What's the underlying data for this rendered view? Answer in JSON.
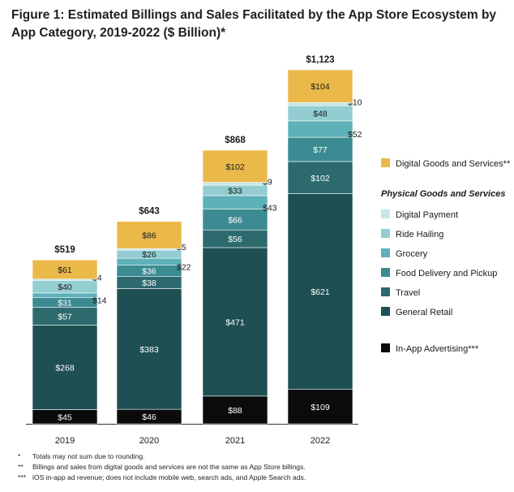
{
  "title": "Figure 1: Estimated Billings and Sales Facilitated by the App Store Ecosystem by App Category, 2019-2022 ($ Billion)*",
  "chart_data": {
    "type": "bar",
    "stacked": true,
    "title": "Figure 1: Estimated Billings and Sales Facilitated by the App Store Ecosystem by App Category, 2019-2022 ($ Billion)*",
    "categories": [
      "2019",
      "2020",
      "2021",
      "2022"
    ],
    "totals": [
      519,
      643,
      868,
      1123
    ],
    "total_labels": [
      "$519",
      "$643",
      "$868",
      "$1,123"
    ],
    "ylim": [
      0,
      1123
    ],
    "grid": false,
    "legend_position": "right",
    "legend_group_heading": "Physical Goods and Services",
    "series": [
      {
        "name": "In-App Advertising***",
        "color": "#0b0b0b",
        "text_color": "#ffffff",
        "values": [
          45,
          46,
          88,
          109
        ]
      },
      {
        "name": "General Retail",
        "color": "#1e4f52",
        "text_color": "#ffffff",
        "values": [
          268,
          383,
          471,
          621
        ]
      },
      {
        "name": "Travel",
        "color": "#2d6a6e",
        "text_color": "#ffffff",
        "values": [
          57,
          38,
          56,
          102
        ]
      },
      {
        "name": "Food Delivery and Pickup",
        "color": "#3c8b92",
        "text_color": "#ffffff",
        "values": [
          31,
          36,
          66,
          77
        ]
      },
      {
        "name": "Grocery",
        "color": "#5eb1b8",
        "text_color": "#ffffff",
        "values": [
          14,
          22,
          43,
          52
        ]
      },
      {
        "name": "Ride Hailing",
        "color": "#93cdd1",
        "text_color": "#1a1a1a",
        "values": [
          40,
          26,
          33,
          48
        ]
      },
      {
        "name": "Digital Payment",
        "color": "#c8e6e8",
        "text_color": "#1a1a1a",
        "values": [
          4,
          5,
          9,
          10
        ]
      },
      {
        "name": "Digital Goods and Services**",
        "color": "#eab94a",
        "text_color": "#1a1a1a",
        "values": [
          61,
          86,
          102,
          104
        ]
      }
    ],
    "value_labels": {
      "In-App Advertising***": [
        "$45",
        "$46",
        "$88",
        "$109"
      ],
      "General Retail": [
        "$268",
        "$383",
        "$471",
        "$621"
      ],
      "Travel": [
        "$57",
        "$38",
        "$56",
        "$102"
      ],
      "Food Delivery and Pickup": [
        "$31",
        "$36",
        "$66",
        "$77"
      ],
      "Grocery": [
        "$14",
        "$22",
        "$43",
        "$52"
      ],
      "Ride Hailing": [
        "$40",
        "$26",
        "$33",
        "$48"
      ],
      "Digital Payment": [
        "$4",
        "$5",
        "$9",
        "$10"
      ],
      "Digital Goods and Services**": [
        "$61",
        "$86",
        "$102",
        "$104"
      ]
    },
    "legend_order": [
      "Digital Goods and Services**",
      "Digital Payment",
      "Ride Hailing",
      "Grocery",
      "Food Delivery and Pickup",
      "Travel",
      "General Retail",
      "In-App Advertising***"
    ]
  },
  "footnotes": [
    {
      "mark": "*",
      "text": "Totals may not sum due to rounding."
    },
    {
      "mark": "**",
      "text": "Billings and sales from digital goods and services are not the same as App Store billings."
    },
    {
      "mark": "***",
      "text": "iOS in-app ad revenue; does not include mobile web, search ads, and Apple Search ads."
    }
  ]
}
